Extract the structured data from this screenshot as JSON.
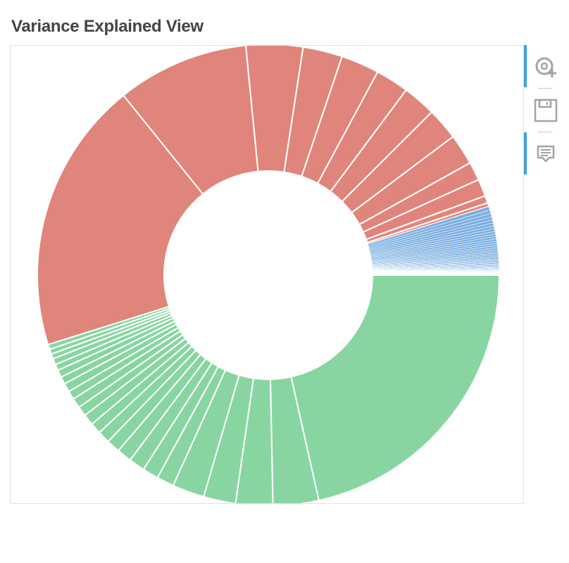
{
  "title": "Variance Explained View",
  "toolbar": {
    "tools": [
      {
        "icon": "wheel-zoom-icon",
        "active": true
      },
      {
        "icon": "save-icon",
        "active": false
      },
      {
        "icon": "hover-tooltip-icon",
        "active": true
      }
    ]
  },
  "colors": {
    "green": "#88d5a2",
    "red": "#e0857c",
    "blue": "#7aaee0",
    "slice_border": "#ffffff",
    "toolbar_active": "#3fa2dc",
    "icon": "#a3a3a3"
  },
  "chart_data": {
    "type": "pie",
    "title": "Variance Explained View",
    "groups": [
      {
        "color": "green",
        "values": [
          24.9,
          3.7,
          3.0,
          2.6,
          2.6,
          1.4,
          1.3,
          1.3,
          1.2,
          1.1,
          1.0,
          0.9,
          0.9,
          0.8,
          0.8,
          0.7,
          0.7,
          0.6,
          0.6,
          0.5,
          0.5,
          0.4,
          0.4,
          0.4
        ]
      },
      {
        "color": "red",
        "values": [
          22.1,
          10.7,
          4.6,
          3.2,
          3.1,
          2.7,
          2.7,
          2.6,
          2.5,
          1.5,
          1.4,
          0.6,
          0.3
        ]
      },
      {
        "color": "blue",
        "values": [
          0.3,
          0.28,
          0.27,
          0.26,
          0.25,
          0.24,
          0.23,
          0.22,
          0.21,
          0.2,
          0.2,
          0.19,
          0.18,
          0.17,
          0.16,
          0.15,
          0.15,
          0.14,
          0.13,
          0.12,
          0.12,
          0.11,
          0.1,
          0.1,
          0.09,
          0.09,
          0.08,
          0.08,
          0.07,
          0.07,
          0.06,
          0.06,
          0.05,
          0.05,
          0.05,
          0.04,
          0.04,
          0.04,
          0.03,
          0.03,
          0.03,
          0.03,
          0.02,
          0.02,
          0.02,
          0.02,
          0.02
        ]
      }
    ],
    "start": "3 o'clock",
    "direction": "clockwise",
    "donut": true
  }
}
